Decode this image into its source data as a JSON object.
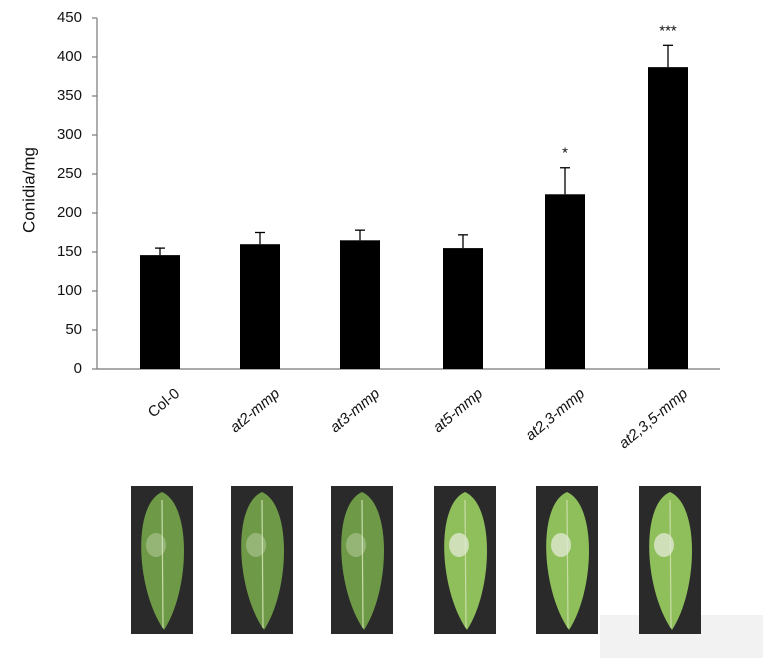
{
  "chart_data": {
    "type": "bar",
    "y_label": "Conidia/mg",
    "categories": [
      "Col-0",
      "at2-mmp",
      "at3-mmp",
      "at5-mmp",
      "at2,3-mmp",
      "at2,3,5-mmp"
    ],
    "values": [
      146,
      160,
      165,
      155,
      224,
      387
    ],
    "errors": [
      9,
      15,
      13,
      17,
      34,
      28
    ],
    "significance": [
      null,
      null,
      null,
      null,
      "*",
      "***"
    ],
    "color": "#000000",
    "ylim": [
      0,
      450
    ],
    "yticks": [
      0,
      50,
      100,
      150,
      200,
      250,
      300,
      350,
      400,
      450
    ],
    "grid": false
  }
}
